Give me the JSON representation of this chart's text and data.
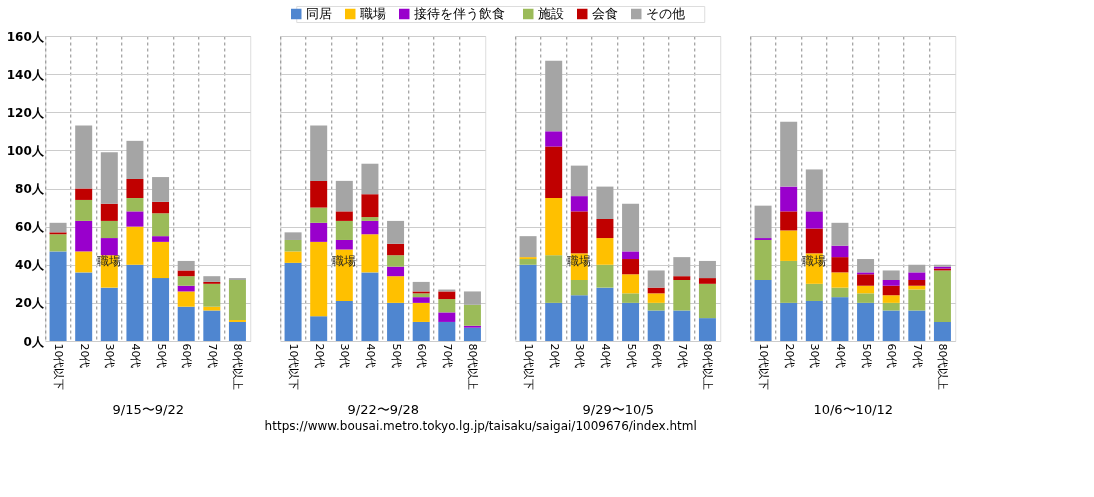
{
  "chart_data": [
    {
      "type": "bar",
      "stacked": true,
      "legend": "top",
      "grid": true,
      "xlabel": "9/15〜9/22",
      "categories": [
        "10代以下",
        "20代",
        "30代",
        "40代",
        "50代",
        "60代",
        "70代",
        "80代以上"
      ],
      "ylim": [
        0,
        160
      ],
      "yticks": [
        {
          "value": 0,
          "label": "0人"
        },
        {
          "value": 20,
          "label": "20人"
        },
        {
          "value": 40,
          "label": "40人"
        },
        {
          "value": 60,
          "label": "60人"
        },
        {
          "value": 80,
          "label": "80人"
        },
        {
          "value": 100,
          "label": "100人"
        },
        {
          "value": 120,
          "label": "120人"
        },
        {
          "value": 140,
          "label": "140人"
        },
        {
          "value": 160,
          "label": "160人"
        }
      ],
      "annotations": [
        "職場",
        "https://www.bousai.metro.tokyo.lg.jp/taisaku/saigai/1009676/index.html"
      ],
      "series": [
        {
          "name": "同居",
          "color": "#4f86d0",
          "values": [
            47,
            36,
            28,
            40,
            33,
            18,
            16,
            10
          ]
        },
        {
          "name": "職場",
          "color": "#ffc000",
          "values": [
            0,
            11,
            17,
            20,
            19,
            8,
            2,
            1
          ]
        },
        {
          "name": "接待を伴う飲食",
          "color": "#9900cc",
          "values": [
            0,
            16,
            9,
            8,
            3,
            3,
            0,
            0
          ]
        },
        {
          "name": "施設",
          "color": "#9bbb59",
          "values": [
            9,
            11,
            9,
            7,
            12,
            5,
            12,
            21
          ]
        },
        {
          "name": "会食",
          "color": "#c00000",
          "values": [
            1,
            6,
            9,
            10,
            6,
            3,
            1,
            0
          ]
        },
        {
          "name": "その他",
          "color": "#a5a5a5",
          "values": [
            5,
            33,
            27,
            20,
            13,
            5,
            3,
            1
          ]
        }
      ]
    },
    {
      "type": "bar",
      "stacked": true,
      "grid": true,
      "xlabel": "9/22〜9/28",
      "tick_labels": "x",
      "categories": [
        "10代以下",
        "20代",
        "30代",
        "40代",
        "50代",
        "60代",
        "70代",
        "80代以上"
      ],
      "ylim": [
        0,
        160
      ],
      "annotations": [
        "職場"
      ],
      "series": [
        {
          "color": "#4f86d0",
          "values": [
            41,
            13,
            21,
            36,
            20,
            10,
            10,
            7
          ]
        },
        {
          "color": "#ffc000",
          "values": [
            6,
            39,
            27,
            20,
            14,
            10,
            0,
            0
          ]
        },
        {
          "color": "#9900cc",
          "values": [
            0,
            10,
            5,
            7,
            5,
            3,
            5,
            1
          ]
        },
        {
          "color": "#9bbb59",
          "values": [
            6,
            8,
            10,
            2,
            6,
            2,
            7,
            11
          ]
        },
        {
          "color": "#c00000",
          "values": [
            0,
            14,
            5,
            12,
            6,
            1,
            4,
            0
          ]
        },
        {
          "color": "#a5a5a5",
          "values": [
            4,
            29,
            16,
            16,
            12,
            5,
            1,
            7
          ]
        }
      ]
    },
    {
      "type": "bar",
      "stacked": true,
      "grid": true,
      "xlabel": "9/29〜10/5",
      "tick_labels": "x",
      "categories": [
        "10代以下",
        "20代",
        "30代",
        "40代",
        "50代",
        "60代",
        "70代",
        "80代以上"
      ],
      "ylim": [
        0,
        160
      ],
      "annotations": [
        "職場"
      ],
      "series": [
        {
          "color": "#4f86d0",
          "values": [
            40,
            20,
            24,
            28,
            20,
            16,
            16,
            12
          ]
        },
        {
          "color": "#9bbb59",
          "values": [
            3,
            25,
            8,
            12,
            5,
            4,
            16,
            18
          ]
        },
        {
          "color": "#ffc000",
          "values": [
            1,
            30,
            14,
            14,
            10,
            5,
            0,
            0
          ]
        },
        {
          "color": "#c00000",
          "values": [
            0,
            27,
            22,
            10,
            8,
            3,
            2,
            3
          ]
        },
        {
          "color": "#9900cc",
          "values": [
            0,
            8,
            8,
            0,
            4,
            0,
            0,
            0
          ]
        },
        {
          "color": "#a5a5a5",
          "values": [
            11,
            37,
            16,
            17,
            25,
            9,
            10,
            9
          ]
        }
      ]
    },
    {
      "type": "bar",
      "stacked": true,
      "grid": true,
      "xlabel": "10/6〜10/12",
      "tick_labels": "x",
      "categories": [
        "10代以下",
        "20代",
        "30代",
        "40代",
        "50代",
        "60代",
        "70代",
        "80代以上"
      ],
      "ylim": [
        0,
        160
      ],
      "annotations": [
        "職場"
      ],
      "series": [
        {
          "color": "#4f86d0",
          "values": [
            32,
            20,
            21,
            23,
            20,
            16,
            16,
            10
          ]
        },
        {
          "color": "#9bbb59",
          "values": [
            21,
            22,
            9,
            5,
            5,
            4,
            11,
            27
          ]
        },
        {
          "color": "#ffc000",
          "values": [
            0,
            16,
            16,
            8,
            4,
            4,
            2,
            0
          ]
        },
        {
          "color": "#c00000",
          "values": [
            0,
            10,
            13,
            8,
            6,
            5,
            3,
            1
          ]
        },
        {
          "color": "#9900cc",
          "values": [
            1,
            13,
            9,
            6,
            1,
            3,
            4,
            1
          ]
        },
        {
          "color": "#a5a5a5",
          "values": [
            17,
            34,
            22,
            12,
            7,
            5,
            4,
            1
          ]
        }
      ]
    }
  ]
}
